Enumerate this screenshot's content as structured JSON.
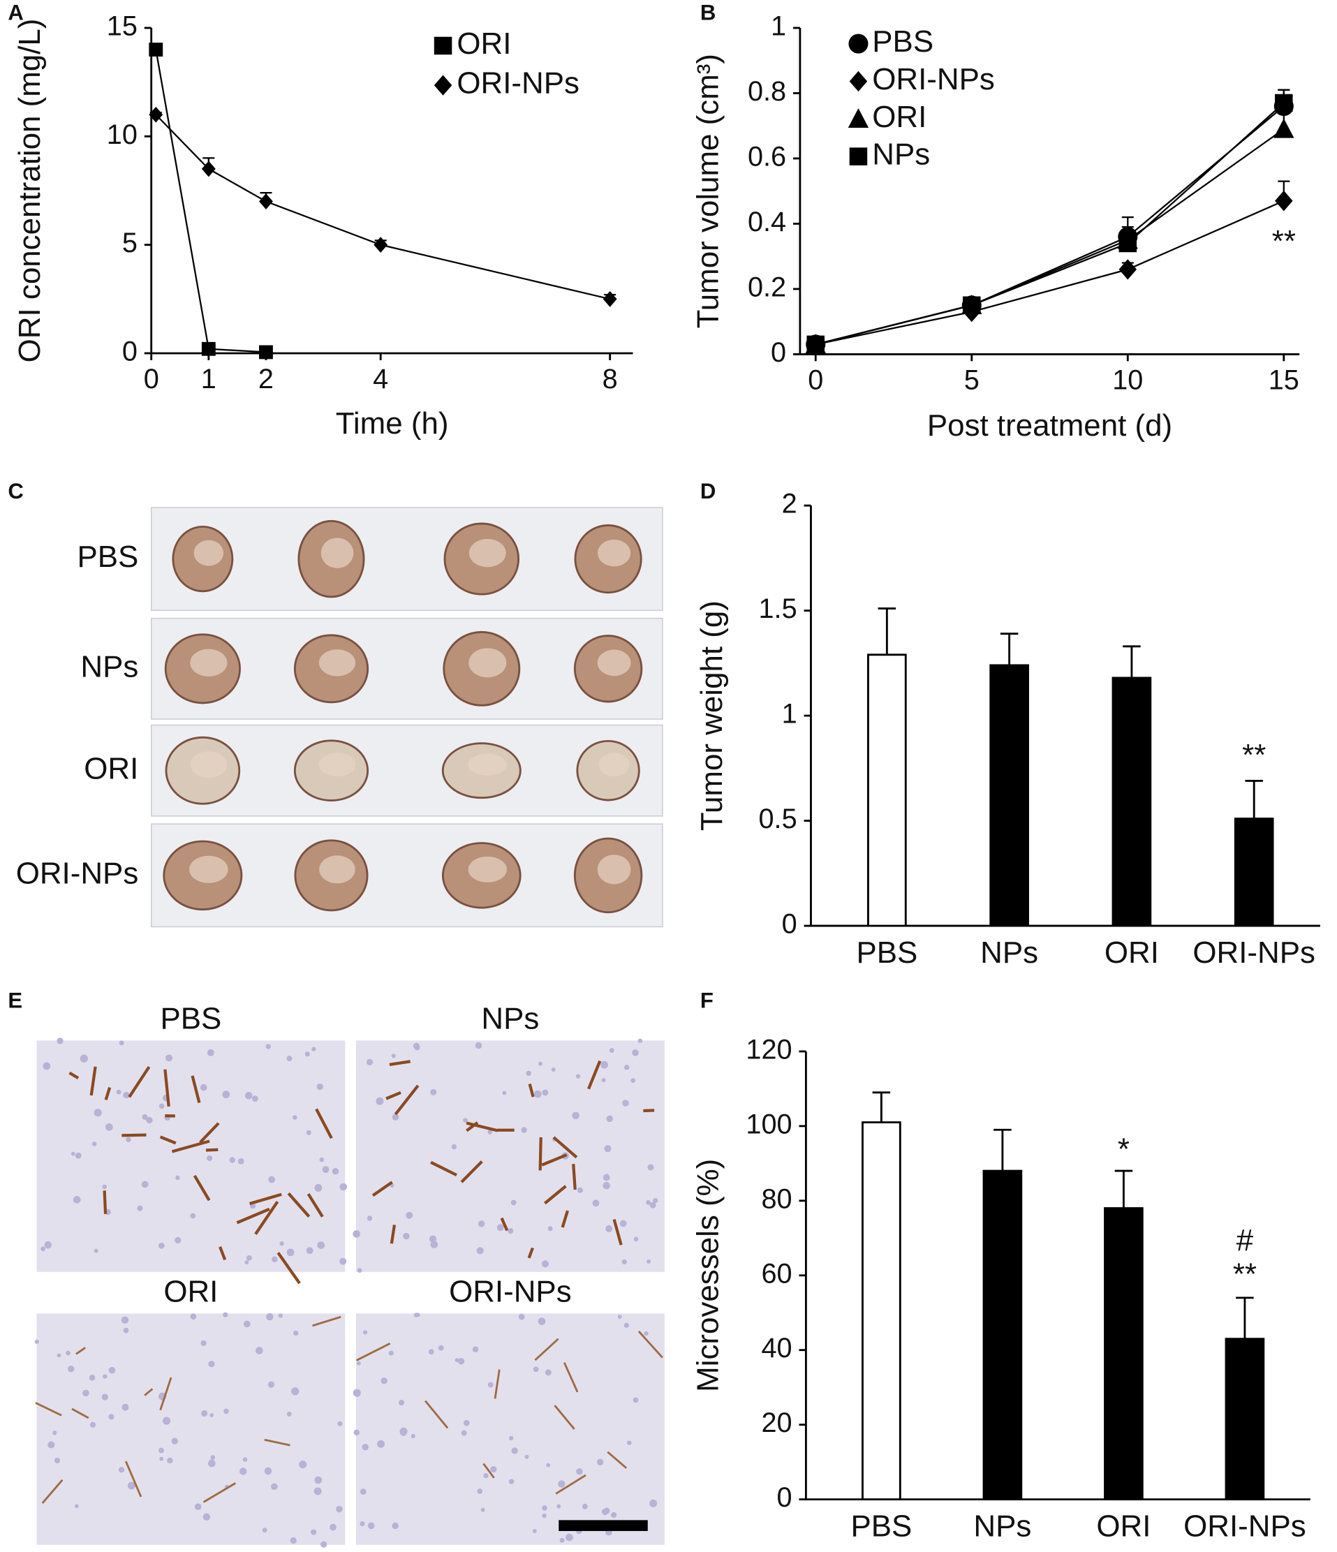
{
  "panel_labels": [
    "A",
    "B",
    "C",
    "D",
    "E",
    "F"
  ],
  "photos": {
    "tumors": [
      "PBS",
      "NPs",
      "ORI",
      "ORI-NPs"
    ],
    "histology": [
      "PBS",
      "NPs",
      "ORI",
      "ORI-NPs"
    ]
  },
  "chart_data": [
    {
      "type": "line",
      "ylabel": "ORI concentration (mg/L)",
      "xlabel": "Time (h)",
      "x": [
        0.08,
        1,
        2,
        4,
        8
      ],
      "xlim": [
        0,
        8.4
      ],
      "xticks": [
        0,
        1,
        2,
        4,
        8
      ],
      "ylim": [
        0,
        15
      ],
      "yticks": [
        0,
        5,
        10,
        15
      ],
      "grid": false,
      "series": [
        {
          "name": "ORI",
          "marker": "square",
          "color": "#000000",
          "values": [
            14,
            0.2,
            0.05,
            null,
            null
          ],
          "errors": [
            0.1,
            0.05,
            0.02,
            null,
            null
          ]
        },
        {
          "name": "ORI-NPs",
          "marker": "diamond",
          "color": "#000000",
          "values": [
            11,
            8.5,
            7,
            5,
            2.5
          ],
          "errors": [
            0.1,
            0.5,
            0.4,
            0.2,
            0.2
          ]
        }
      ]
    },
    {
      "type": "line",
      "ylabel": "Tumor volume (cm³)",
      "xlabel": "Post treatment (d)",
      "x": [
        0,
        5,
        10,
        15
      ],
      "xlim": [
        -0.5,
        15.5
      ],
      "xticks": [
        0,
        5,
        10,
        15
      ],
      "ylim": [
        0,
        1
      ],
      "yticks": [
        0,
        0.2,
        0.4,
        0.6,
        0.8,
        1
      ],
      "grid": false,
      "annotations": [
        "**"
      ],
      "series": [
        {
          "name": "PBS",
          "marker": "circle",
          "color": "#000000",
          "values": [
            0.03,
            0.15,
            0.36,
            0.76
          ],
          "errors": [
            0.005,
            0.01,
            0.06,
            0.05
          ]
        },
        {
          "name": "ORI-NPs",
          "marker": "diamond",
          "color": "#000000",
          "values": [
            0.03,
            0.13,
            0.26,
            0.47
          ],
          "errors": [
            0.005,
            0.01,
            0.02,
            0.06
          ]
        },
        {
          "name": "ORI",
          "marker": "triangle",
          "color": "#000000",
          "values": [
            0.03,
            0.15,
            0.35,
            0.69
          ],
          "errors": [
            0.005,
            0.01,
            0.04,
            0.05
          ]
        },
        {
          "name": "NPs",
          "marker": "square",
          "color": "#000000",
          "values": [
            0.03,
            0.15,
            0.34,
            0.77
          ],
          "errors": [
            0.005,
            0.01,
            0.04,
            0.04
          ]
        }
      ]
    },
    {
      "type": "bar",
      "ylabel": "Tumor weight (g)",
      "categories": [
        "PBS",
        "NPs",
        "ORI",
        "ORI-NPs"
      ],
      "values": [
        1.29,
        1.24,
        1.18,
        0.51
      ],
      "errors": [
        0.22,
        0.15,
        0.15,
        0.18
      ],
      "colors": [
        "#ffffff",
        "#000000",
        "#000000",
        "#000000"
      ],
      "ylim": [
        0,
        2
      ],
      "yticks": [
        0,
        0.5,
        1,
        1.5,
        2
      ],
      "grid": false,
      "annotations": [
        "**"
      ]
    },
    {
      "type": "bar",
      "ylabel": "Microvessels (%)",
      "categories": [
        "PBS",
        "NPs",
        "ORI",
        "ORI-NPs"
      ],
      "values": [
        101,
        88,
        78,
        43
      ],
      "errors": [
        8,
        11,
        10,
        11
      ],
      "colors": [
        "#ffffff",
        "#000000",
        "#000000",
        "#000000"
      ],
      "ylim": [
        0,
        120
      ],
      "yticks": [
        0,
        20,
        40,
        60,
        80,
        100,
        120
      ],
      "grid": false,
      "annotations": [
        "*",
        "#",
        "**"
      ]
    }
  ]
}
